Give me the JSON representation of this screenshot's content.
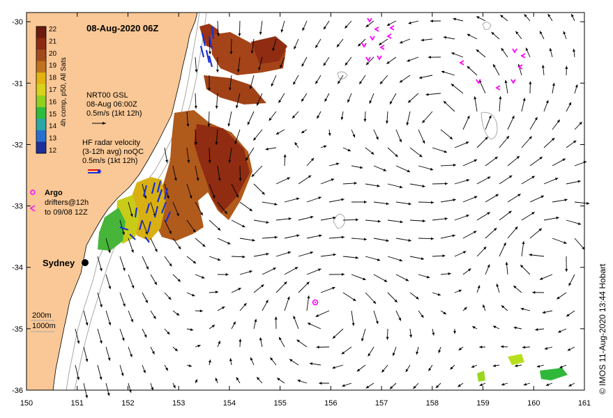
{
  "title": "08-Aug-2020 06Z",
  "credit": "© IMOS 11-Aug-2020 13:44 Hobart",
  "colorbar": {
    "label": "4h comp, p50, All Sats",
    "ticks": [
      "22",
      "21",
      "20",
      "19",
      "18",
      "17",
      "16",
      "15",
      "14",
      "13",
      "12"
    ],
    "colors": [
      "#6b1a0e",
      "#8c2b12",
      "#a24a1e",
      "#c0721e",
      "#e3b410",
      "#d7d21a",
      "#8ed21e",
      "#2ebd3c",
      "#2aa7a6",
      "#2770cf",
      "#1f2f9a"
    ]
  },
  "legend": {
    "model": {
      "name": "NRT00 GSL",
      "time": "08-Aug 06:00Z",
      "scale": "0.5m/s (1kt 12h)"
    },
    "radar": {
      "name": "HF radar velocity",
      "avg": "(3-12h avg) noQC",
      "scale": "0.5m/s (1kt 12h)"
    },
    "argo": "Argo",
    "drifters_line1": "drifters@12h",
    "drifters_line2": "to 09/08 12Z",
    "isobath_200": "200m",
    "isobath_1000": "1000m"
  },
  "place": {
    "name": "Sydney"
  },
  "axes": {
    "x_ticks": [
      "150",
      "151",
      "152",
      "153",
      "154",
      "155",
      "156",
      "157",
      "158",
      "159",
      "160",
      "161"
    ],
    "y_ticks": [
      "-30",
      "-31",
      "-32",
      "-33",
      "-34",
      "-35",
      "-36"
    ],
    "xlim": [
      150,
      161
    ],
    "ylim": [
      -36,
      -29.85
    ]
  },
  "colors": {
    "land": "#fac896",
    "ocean": "#ffffff",
    "argo": "#ff00ff",
    "drifter": "#ff00ff",
    "radar": "#1a2fd6",
    "isobath": "#a8a8a8",
    "vector": "#000000"
  }
}
